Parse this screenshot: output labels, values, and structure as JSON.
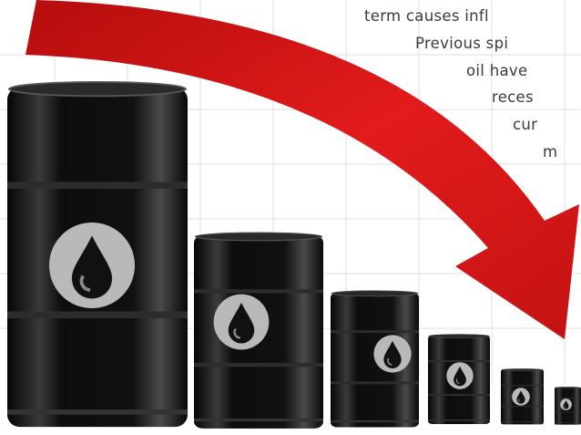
{
  "text_lines": [
    "term causes infl",
    "Previous spi",
    "oil have",
    "reces",
    "cur",
    "m"
  ]
}
